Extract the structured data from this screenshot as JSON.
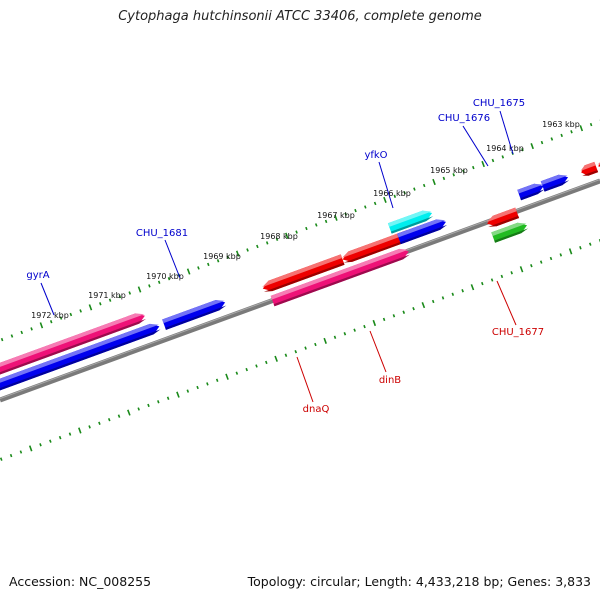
{
  "title": "Cytophaga hutchinsonii ATCC 33406, complete genome",
  "footer": {
    "accession": "Accession: NC_008255",
    "summary": "Topology: circular; Length: 4,433,218 bp; Genes: 3,833"
  },
  "colors": {
    "backbone": "#7a7a7a",
    "tick": "#1a8a1a",
    "label_forward": "#0000cc",
    "label_reverse": "#cc0000",
    "gene_red": "#ee0000",
    "gene_blue": "#0000ee",
    "gene_magenta": "#ee1177",
    "gene_cyan": "#00eeee",
    "gene_green": "#22bb22"
  },
  "kbp_ticks": [
    "1972 kbp",
    "1971 kbp",
    "1970 kbp",
    "1969 kbp",
    "1968 kbp",
    "1967 kbp",
    "1966 kbp",
    "1965 kbp",
    "1964 kbp",
    "1963 kbp"
  ],
  "gene_labels": [
    {
      "name": "gyrA",
      "strand": "forward"
    },
    {
      "name": "CHU_1681",
      "strand": "forward"
    },
    {
      "name": "yfkO",
      "strand": "forward"
    },
    {
      "name": "CHU_1676",
      "strand": "forward"
    },
    {
      "name": "CHU_1675",
      "strand": "forward"
    },
    {
      "name": "CHU_1677",
      "strand": "reverse"
    },
    {
      "name": "dinB",
      "strand": "reverse"
    },
    {
      "name": "dnaQ",
      "strand": "reverse"
    }
  ]
}
